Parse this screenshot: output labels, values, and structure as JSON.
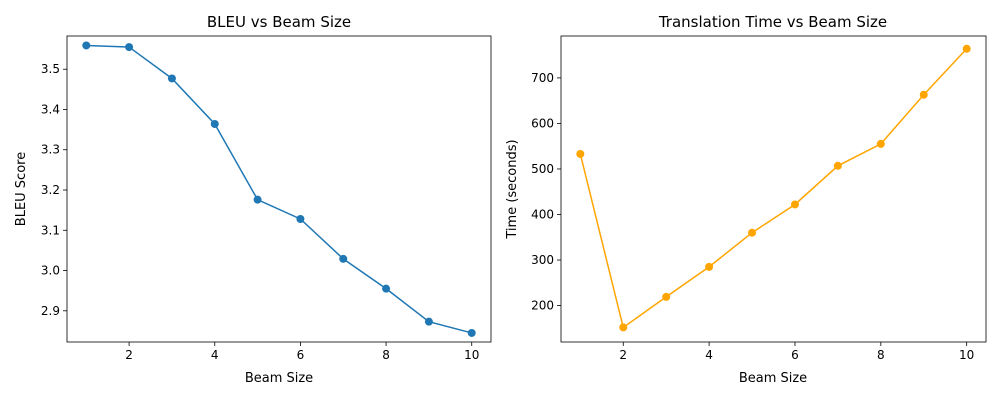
{
  "chart_data": [
    {
      "type": "line",
      "title": "BLEU vs Beam Size",
      "xlabel": "Beam Size",
      "ylabel": "BLEU Score",
      "xlim": [
        0.55,
        10.45
      ],
      "ylim": [
        2.8225,
        3.5825
      ],
      "xticks": [
        2,
        4,
        6,
        8,
        10
      ],
      "yticks": [
        2.9,
        3.0,
        3.1,
        3.2,
        3.3,
        3.4,
        3.5
      ],
      "ytick_decimals": 1,
      "grid": false,
      "color": "#1f77b4",
      "x": [
        1,
        2,
        3,
        4,
        5,
        6,
        7,
        8,
        9,
        10
      ],
      "y": [
        3.559,
        3.555,
        3.477,
        3.364,
        3.176,
        3.128,
        3.029,
        2.955,
        2.873,
        2.845
      ]
    },
    {
      "type": "line",
      "title": "Translation Time vs Beam Size",
      "xlabel": "Beam Size",
      "ylabel": "Time (seconds)",
      "xlim": [
        0.55,
        10.45
      ],
      "ylim": [
        120,
        792
      ],
      "xticks": [
        2,
        4,
        6,
        8,
        10
      ],
      "yticks": [
        200,
        300,
        400,
        500,
        600,
        700
      ],
      "ytick_decimals": 0,
      "grid": false,
      "color": "#ffa500",
      "x": [
        1,
        2,
        3,
        4,
        5,
        6,
        7,
        8,
        9,
        10
      ],
      "y": [
        533,
        152,
        219,
        285,
        360,
        422,
        507,
        555,
        663,
        764
      ]
    }
  ]
}
